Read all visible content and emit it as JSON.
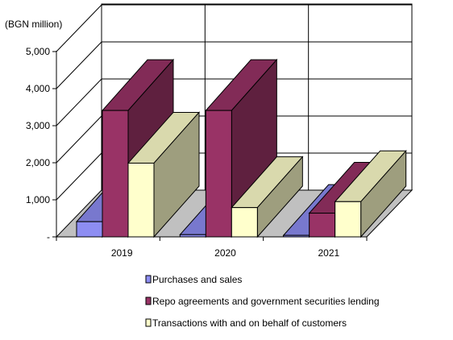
{
  "chart_data": {
    "type": "bar",
    "unit_label": "(BGN million)",
    "categories": [
      "2019",
      "2020",
      "2021"
    ],
    "y_ticks": [
      "-",
      "1,000",
      "2,000",
      "3,000",
      "4,000",
      "5,000"
    ],
    "ylim": [
      0,
      5000
    ],
    "series": [
      {
        "name": "Purchases and sales",
        "values": [
          410,
          60,
          40
        ],
        "color": "#8d8df2"
      },
      {
        "name": "Repo agreements and government securities lending",
        "values": [
          3410,
          3410,
          640
        ],
        "color": "#993366"
      },
      {
        "name": "Transactions with and on behalf of customers",
        "values": [
          1990,
          790,
          950
        ],
        "color": "#ffffcc"
      }
    ],
    "legend_position": "bottom",
    "grid": true,
    "style": "3d-clustered-column"
  }
}
